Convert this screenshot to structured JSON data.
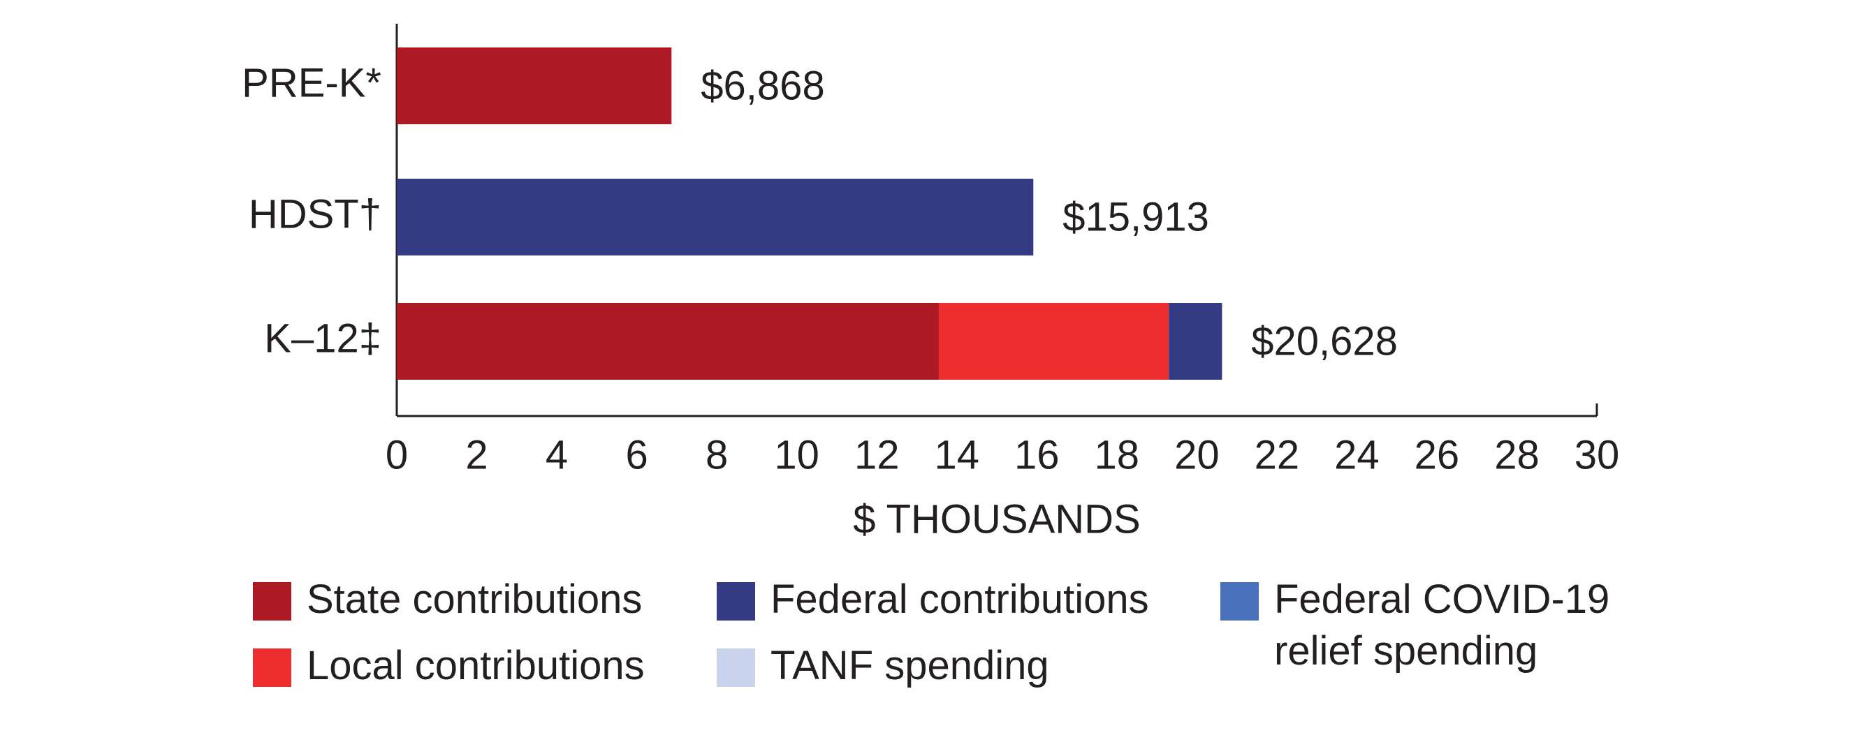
{
  "chart_data": {
    "type": "stacked-bar-horizontal",
    "categories": [
      "PRE-K*",
      "HDST†",
      "K–12‡"
    ],
    "series": [
      {
        "name": "State contributions",
        "color": "#ae1a24",
        "values": [
          6.868,
          null,
          13.55
        ]
      },
      {
        "name": "Local contributions",
        "color": "#ee2d2e",
        "values": [
          null,
          null,
          5.75
        ]
      },
      {
        "name": "Federal contributions",
        "color": "#343a83",
        "values": [
          null,
          15.913,
          1.33
        ]
      },
      {
        "name": "TANF spending",
        "color": "#c9d4ec",
        "values": [
          null,
          null,
          null
        ]
      },
      {
        "name": "Federal COVID-19 relief spending",
        "color": "#4a72bc",
        "values": [
          null,
          null,
          null
        ]
      }
    ],
    "totals": {
      "values": [
        6.868,
        15.913,
        20.628
      ],
      "value_labels": [
        "$6,868",
        "$15,913",
        "$20,628"
      ]
    },
    "x_label": "$ THOUSANDS",
    "xlim": [
      0,
      30
    ],
    "xticks": [
      0,
      2,
      4,
      6,
      8,
      10,
      12,
      14,
      16,
      18,
      20,
      22,
      24,
      26,
      28,
      30
    ],
    "grid": false
  }
}
